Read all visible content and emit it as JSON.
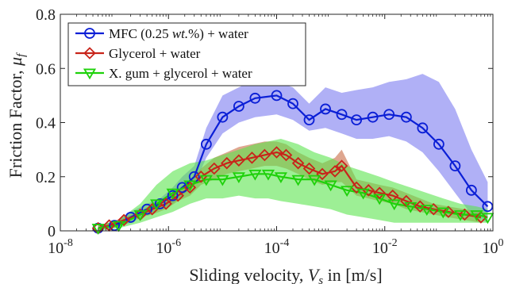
{
  "chart_data": {
    "type": "line",
    "title": "",
    "xlabel": "Sliding velocity, V_s in [m/s]",
    "xlabel_parts": {
      "prefix": "Sliding velocity, ",
      "symbol": "V",
      "subscript": "s",
      "suffix": " in [m/s]"
    },
    "ylabel": "Friction Factor, μ_f",
    "ylabel_parts": {
      "prefix": "Friction Factor, ",
      "symbol": "μ",
      "subscript": "f"
    },
    "xscale": "log",
    "xlim": [
      1e-08,
      1
    ],
    "ylim": [
      0,
      0.8
    ],
    "xticks": [
      {
        "value": 1e-08,
        "base": "10",
        "exp": "-8"
      },
      {
        "value": 1e-06,
        "base": "10",
        "exp": "-6"
      },
      {
        "value": 0.0001,
        "base": "10",
        "exp": "-4"
      },
      {
        "value": 0.01,
        "base": "10",
        "exp": "-2"
      },
      {
        "value": 1,
        "base": "10",
        "exp": "0"
      }
    ],
    "yticks": [
      {
        "value": 0,
        "label": "0"
      },
      {
        "value": 0.2,
        "label": "0.2"
      },
      {
        "value": 0.4,
        "label": "0.4"
      },
      {
        "value": 0.6,
        "label": "0.6"
      },
      {
        "value": 0.8,
        "label": "0.8"
      }
    ],
    "grid": false,
    "legend_position": "top-left",
    "series": [
      {
        "name": "MFC (0.25 wt.%) + water",
        "legend_parts": {
          "prefix": "MFC (0.25 ",
          "italic": "wt.",
          "suffix": "%) + water"
        },
        "color": "#0b1fd6",
        "band_color": "#7b7bf0",
        "marker": "circle",
        "x": [
          5e-08,
          1e-07,
          2e-07,
          4e-07,
          7e-07,
          1.2e-06,
          1.8e-06,
          3e-06,
          5e-06,
          1e-05,
          2e-05,
          4e-05,
          0.0001,
          0.0002,
          0.0004,
          0.0008,
          0.0016,
          0.003,
          0.006,
          0.012,
          0.025,
          0.05,
          0.1,
          0.2,
          0.4,
          0.8
        ],
        "y": [
          0.01,
          0.02,
          0.05,
          0.08,
          0.1,
          0.13,
          0.16,
          0.2,
          0.32,
          0.42,
          0.46,
          0.49,
          0.5,
          0.47,
          0.41,
          0.45,
          0.43,
          0.41,
          0.42,
          0.43,
          0.42,
          0.38,
          0.32,
          0.24,
          0.15,
          0.09
        ],
        "y_low": [
          0.01,
          0.01,
          0.03,
          0.06,
          0.08,
          0.1,
          0.13,
          0.17,
          0.27,
          0.36,
          0.4,
          0.42,
          0.43,
          0.41,
          0.37,
          0.38,
          0.36,
          0.34,
          0.34,
          0.35,
          0.33,
          0.29,
          0.22,
          0.14,
          0.06,
          0.03
        ],
        "y_high": [
          0.02,
          0.03,
          0.07,
          0.1,
          0.12,
          0.16,
          0.2,
          0.24,
          0.38,
          0.5,
          0.53,
          0.56,
          0.55,
          0.53,
          0.47,
          0.53,
          0.51,
          0.52,
          0.53,
          0.55,
          0.56,
          0.58,
          0.55,
          0.45,
          0.3,
          0.18
        ]
      },
      {
        "name": "Glycerol + water",
        "color": "#c8241a",
        "band_color": "#c86a44",
        "marker": "diamond",
        "x": [
          5e-08,
          8e-08,
          1.5e-07,
          3e-07,
          5e-07,
          9e-07,
          1.5e-06,
          2.5e-06,
          4e-06,
          7e-06,
          1.2e-05,
          2e-05,
          3.5e-05,
          6e-05,
          0.0001,
          0.00015,
          0.00025,
          0.0004,
          0.0007,
          0.0012,
          0.0016,
          0.003,
          0.005,
          0.008,
          0.014,
          0.025,
          0.045,
          0.08,
          0.15,
          0.3,
          0.6
        ],
        "y": [
          0.01,
          0.02,
          0.04,
          0.06,
          0.08,
          0.1,
          0.13,
          0.16,
          0.2,
          0.23,
          0.25,
          0.26,
          0.27,
          0.28,
          0.29,
          0.28,
          0.25,
          0.23,
          0.21,
          0.22,
          0.24,
          0.16,
          0.15,
          0.14,
          0.13,
          0.11,
          0.09,
          0.08,
          0.07,
          0.06,
          0.05
        ],
        "y_low": [
          0.0,
          0.01,
          0.03,
          0.05,
          0.06,
          0.08,
          0.11,
          0.13,
          0.17,
          0.19,
          0.21,
          0.22,
          0.23,
          0.24,
          0.24,
          0.23,
          0.21,
          0.19,
          0.17,
          0.18,
          0.18,
          0.13,
          0.12,
          0.11,
          0.1,
          0.08,
          0.07,
          0.06,
          0.05,
          0.04,
          0.03
        ],
        "y_high": [
          0.02,
          0.03,
          0.05,
          0.07,
          0.1,
          0.12,
          0.15,
          0.19,
          0.23,
          0.27,
          0.29,
          0.31,
          0.32,
          0.33,
          0.33,
          0.32,
          0.29,
          0.27,
          0.25,
          0.27,
          0.3,
          0.19,
          0.18,
          0.17,
          0.16,
          0.14,
          0.12,
          0.1,
          0.09,
          0.08,
          0.07
        ]
      },
      {
        "name": "X. gum + glycerol + water",
        "color": "#1ed10a",
        "band_color": "#5be44e",
        "marker": "triangle-down",
        "x": [
          5e-08,
          1.2e-07,
          3e-07,
          6e-07,
          1.2e-06,
          2.5e-06,
          5e-06,
          1e-05,
          2e-05,
          4e-05,
          7e-05,
          0.00012,
          0.00025,
          0.0005,
          0.001,
          0.002,
          0.004,
          0.008,
          0.015,
          0.03,
          0.06,
          0.12,
          0.25,
          0.5,
          0.8
        ],
        "y": [
          0.01,
          0.02,
          0.06,
          0.1,
          0.14,
          0.17,
          0.19,
          0.19,
          0.2,
          0.21,
          0.21,
          0.2,
          0.19,
          0.19,
          0.17,
          0.15,
          0.14,
          0.12,
          0.1,
          0.09,
          0.08,
          0.07,
          0.06,
          0.06,
          0.05
        ],
        "y_low": [
          0.0,
          0.01,
          0.03,
          0.05,
          0.07,
          0.1,
          0.12,
          0.12,
          0.13,
          0.12,
          0.12,
          0.11,
          0.1,
          0.09,
          0.08,
          0.06,
          0.05,
          0.04,
          0.03,
          0.03,
          0.03,
          0.03,
          0.03,
          0.03,
          0.03
        ],
        "y_high": [
          0.02,
          0.04,
          0.1,
          0.17,
          0.22,
          0.25,
          0.26,
          0.28,
          0.3,
          0.32,
          0.33,
          0.34,
          0.32,
          0.29,
          0.27,
          0.24,
          0.22,
          0.2,
          0.18,
          0.16,
          0.14,
          0.12,
          0.1,
          0.09,
          0.08
        ]
      }
    ]
  }
}
